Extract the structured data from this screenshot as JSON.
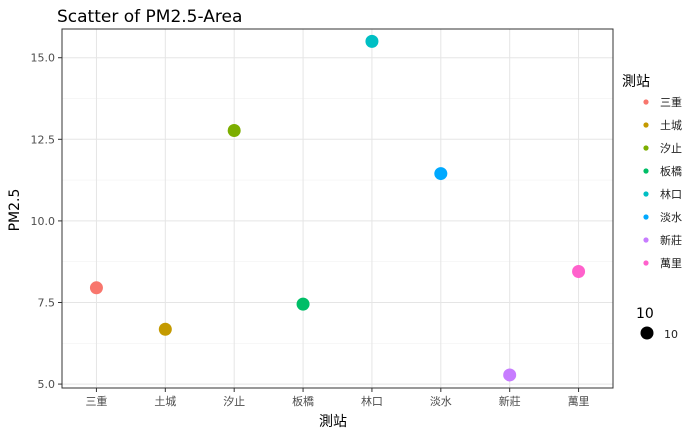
{
  "chart_data": {
    "type": "scatter",
    "title": "Scatter of PM2.5-Area",
    "xlabel": "測站",
    "ylabel": "PM2.5",
    "categories": [
      "三重",
      "土城",
      "汐止",
      "板橋",
      "林口",
      "淡水",
      "新莊",
      "萬里"
    ],
    "series": [
      {
        "name": "三重",
        "x": "三重",
        "y": 7.95,
        "color": "#F8766D"
      },
      {
        "name": "土城",
        "x": "土城",
        "y": 6.68,
        "color": "#C49A00"
      },
      {
        "name": "汐止",
        "x": "汐止",
        "y": 12.77,
        "color": "#7CAE00"
      },
      {
        "name": "板橋",
        "x": "板橋",
        "y": 7.45,
        "color": "#00BE67"
      },
      {
        "name": "林口",
        "x": "林口",
        "y": 15.5,
        "color": "#00BFC4"
      },
      {
        "name": "淡水",
        "x": "淡水",
        "y": 11.45,
        "color": "#00A9FF"
      },
      {
        "name": "新莊",
        "x": "新莊",
        "y": 5.28,
        "color": "#C77CFF"
      },
      {
        "name": "萬里",
        "x": "萬里",
        "y": 8.45,
        "color": "#FF61CC"
      }
    ],
    "ylim": [
      4.88,
      15.88
    ],
    "yticks": [
      5.0,
      7.5,
      10.0,
      12.5,
      15.0
    ],
    "ytick_labels": [
      "5.0",
      "7.5",
      "10.0",
      "12.5",
      "15.0"
    ],
    "grid": true,
    "legend": {
      "placement": "right",
      "color_title": "測站",
      "size_title": "10",
      "size_label": "10"
    }
  }
}
